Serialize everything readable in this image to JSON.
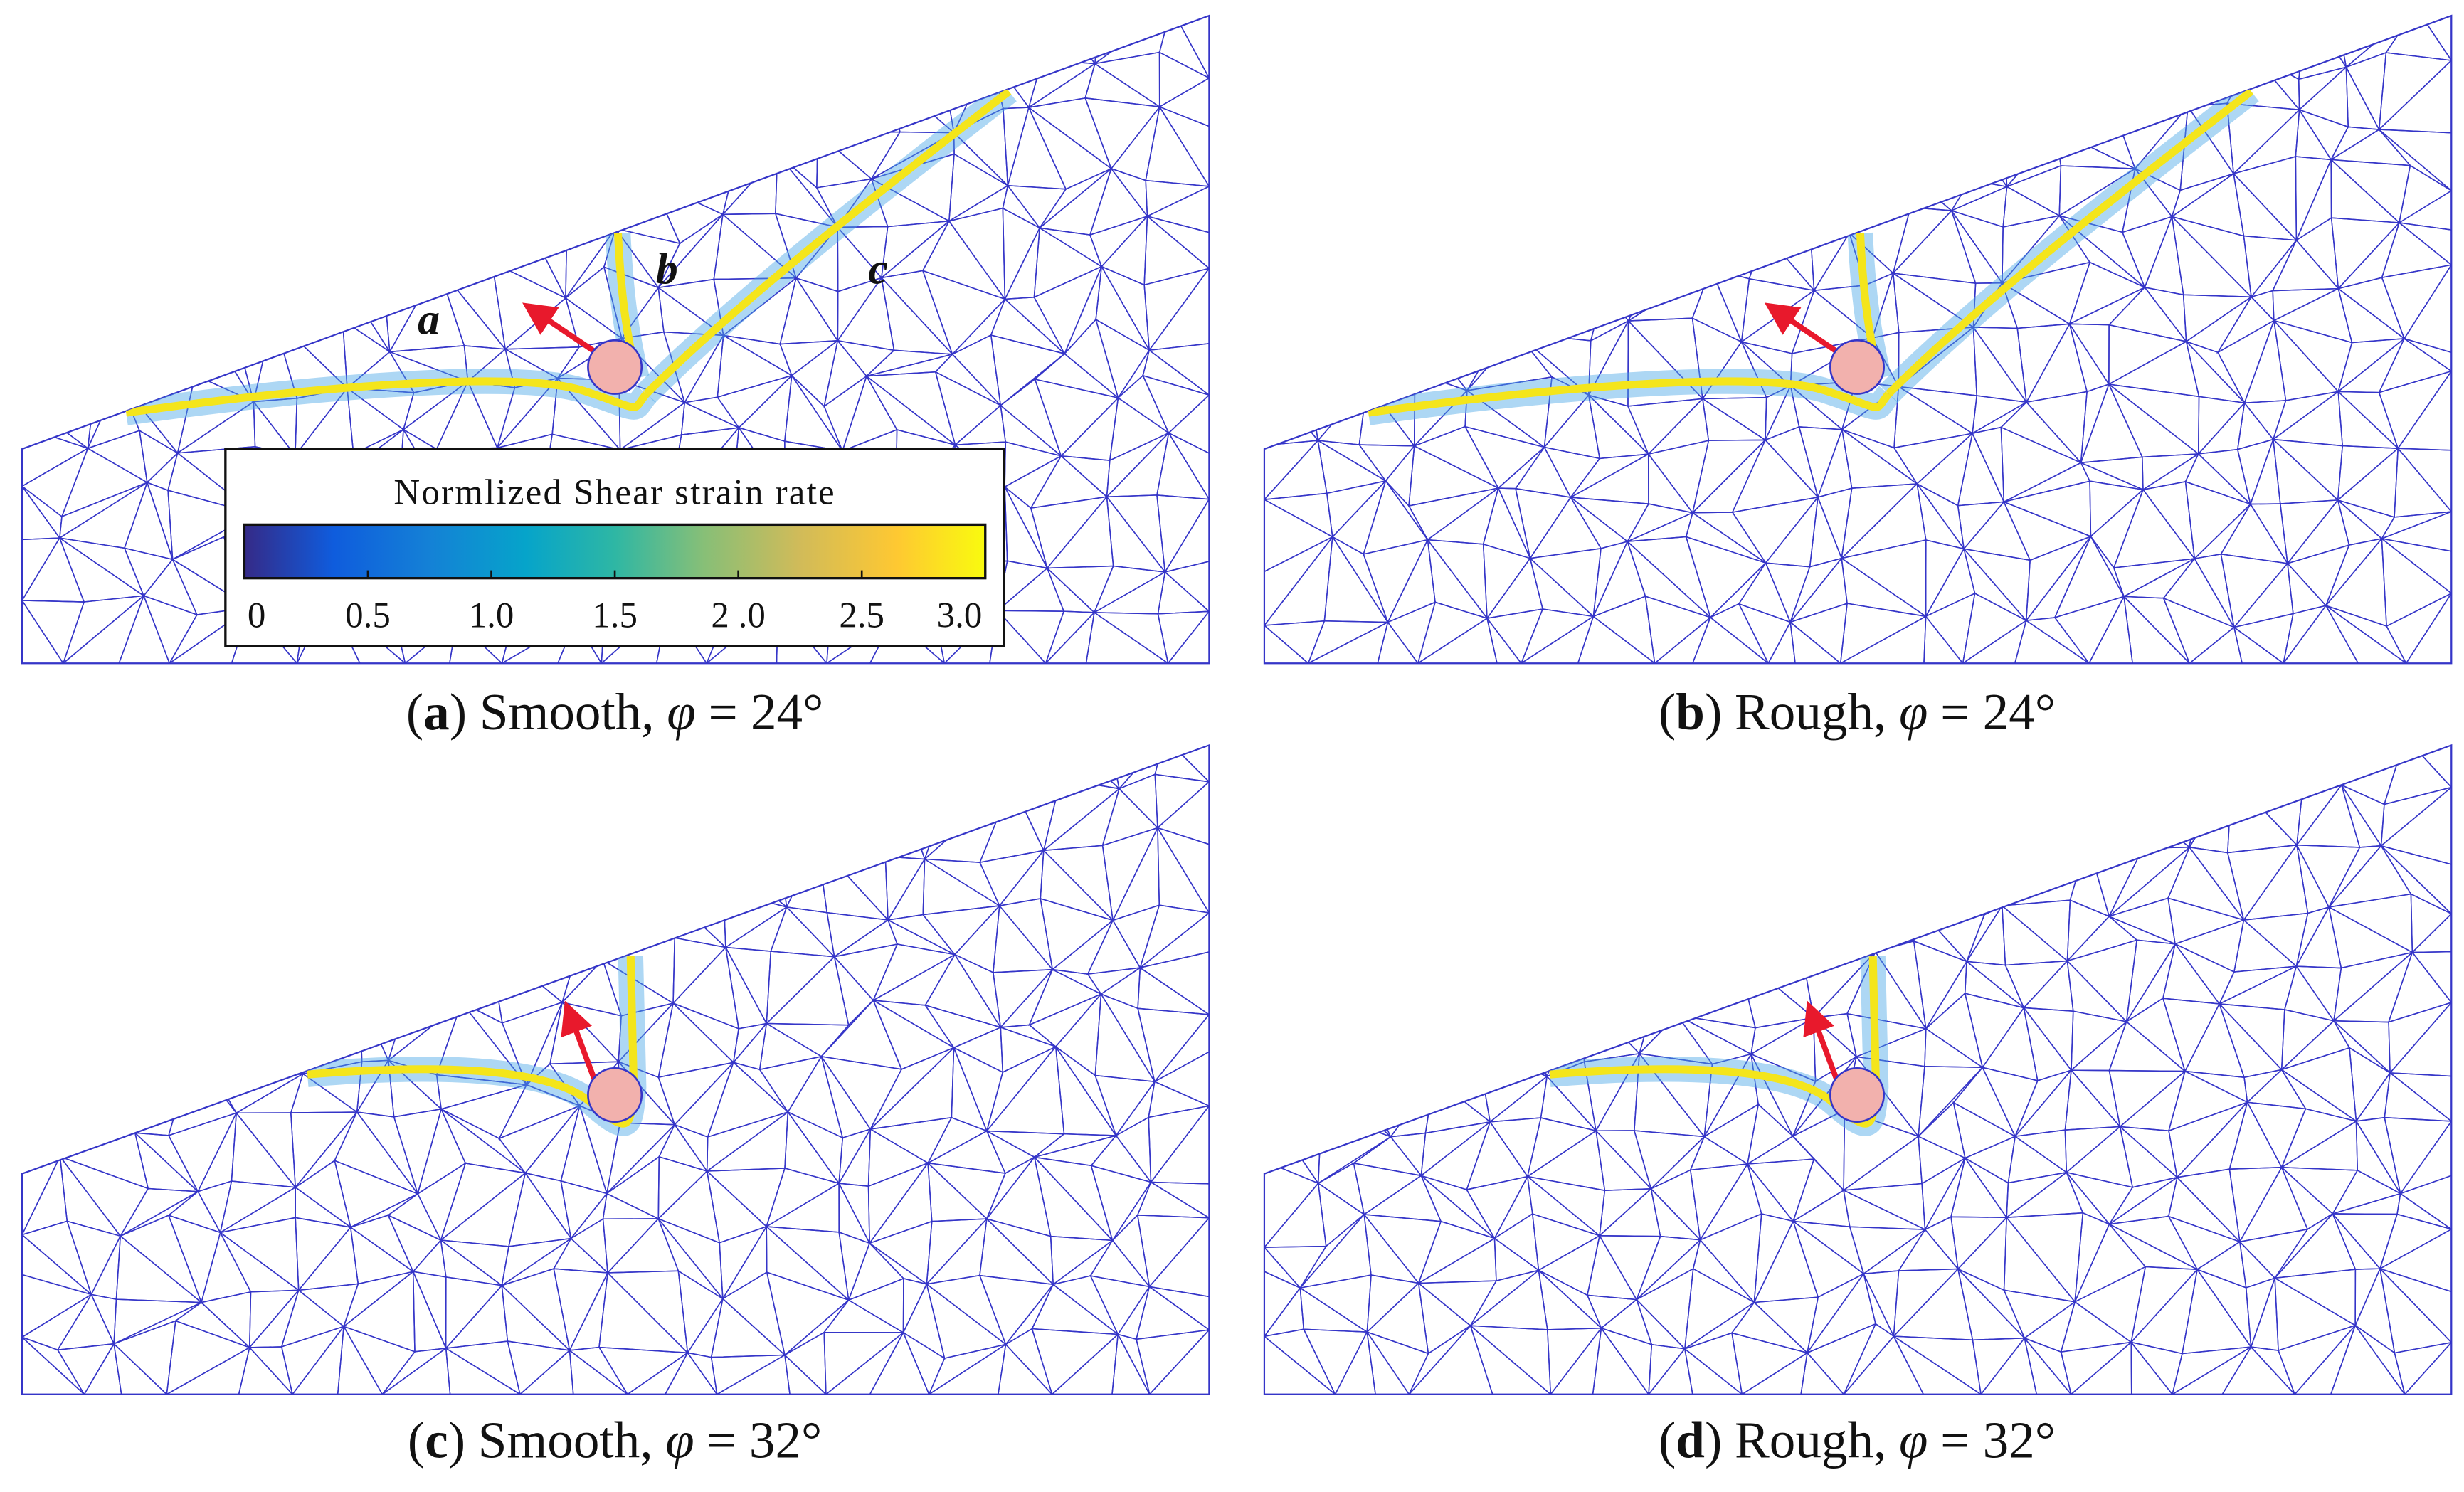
{
  "panels": [
    {
      "caption": {
        "open": "(",
        "letter": "a",
        "close": ")",
        "text": "Smooth,",
        "symbol": "φ",
        "equals": "= 24°"
      }
    },
    {
      "caption": {
        "open": "(",
        "letter": "b",
        "close": ")",
        "text": "Rough,",
        "symbol": "φ",
        "equals": "= 24°"
      }
    },
    {
      "caption": {
        "open": "(",
        "letter": "c",
        "close": ")",
        "text": "Smooth,",
        "symbol": "φ",
        "equals": "= 32°"
      }
    },
    {
      "caption": {
        "open": "(",
        "letter": "d",
        "close": ")",
        "text": "Rough,",
        "symbol": "φ",
        "equals": "= 32°"
      }
    }
  ],
  "colorbar": {
    "title": "Normlized Shear strain rate",
    "ticks": [
      "0",
      "0.5",
      "1.0",
      "1.5",
      "2 .0",
      "2.5",
      "3.0"
    ]
  },
  "band_labels": [
    "a",
    "b",
    "c"
  ]
}
